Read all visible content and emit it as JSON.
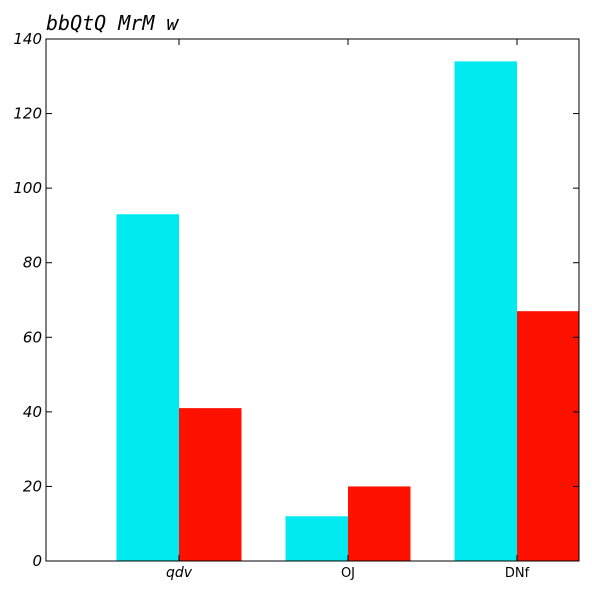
{
  "chart_data": {
    "type": "bar",
    "title": "bbQtQ MrM w",
    "categories": [
      "qdv",
      "OJ",
      "DNf"
    ],
    "series": [
      {
        "color": "#00eaf0",
        "values": [
          93,
          12,
          134
        ]
      },
      {
        "color": "#ff1100",
        "values": [
          41,
          20,
          67
        ]
      }
    ],
    "ylim": [
      0,
      140
    ],
    "yticks": [
      0,
      20,
      40,
      60,
      80,
      100,
      120,
      140
    ],
    "xlabel": "",
    "ylabel": "",
    "grid": false,
    "legend": "none"
  }
}
